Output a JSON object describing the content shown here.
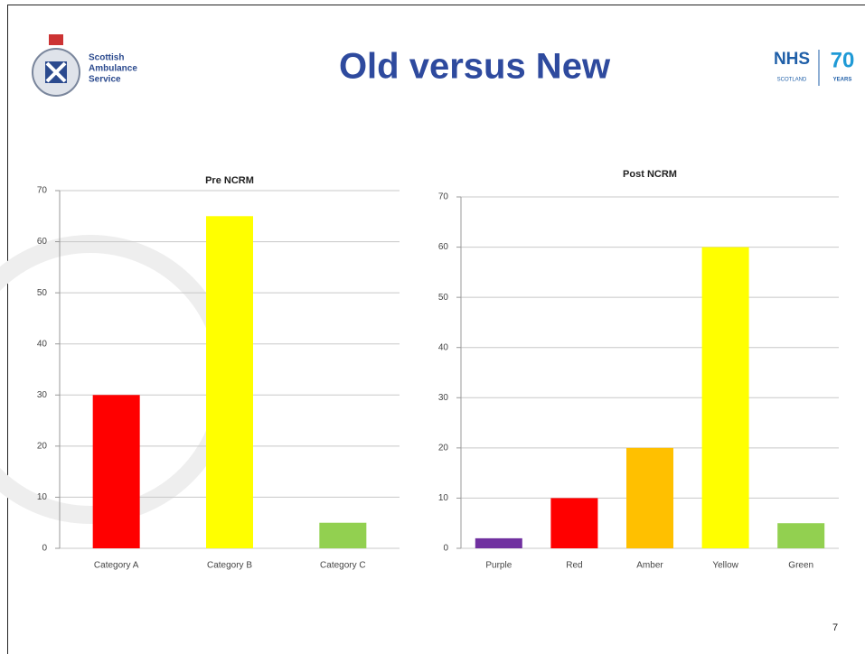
{
  "slide": {
    "title": "Old versus New",
    "page_number": "7",
    "left_logo": [
      "Scottish",
      "Ambulance",
      "Service"
    ],
    "right_logo": {
      "name": "NHS",
      "region": "SCOTLAND",
      "number": "70",
      "caption": "YEARS"
    }
  },
  "chart_data": [
    {
      "type": "bar",
      "title": "Pre NCRM",
      "categories": [
        "Category A",
        "Category B",
        "Category C"
      ],
      "values": [
        30,
        65,
        5
      ],
      "colors": [
        "#ff0000",
        "#ffff00",
        "#92d050"
      ],
      "ylim": [
        0,
        70
      ],
      "yticks": [
        0,
        10,
        20,
        30,
        40,
        50,
        60,
        70
      ],
      "grid": true
    },
    {
      "type": "bar",
      "title": "Post NCRM",
      "categories": [
        "Purple",
        "Red",
        "Amber",
        "Yellow",
        "Green"
      ],
      "values": [
        2,
        10,
        20,
        60,
        5
      ],
      "colors": [
        "#7030a0",
        "#ff0000",
        "#ffc000",
        "#ffff00",
        "#92d050"
      ],
      "ylim": [
        0,
        70
      ],
      "yticks": [
        0,
        10,
        20,
        30,
        40,
        50,
        60,
        70
      ],
      "grid": true
    }
  ]
}
